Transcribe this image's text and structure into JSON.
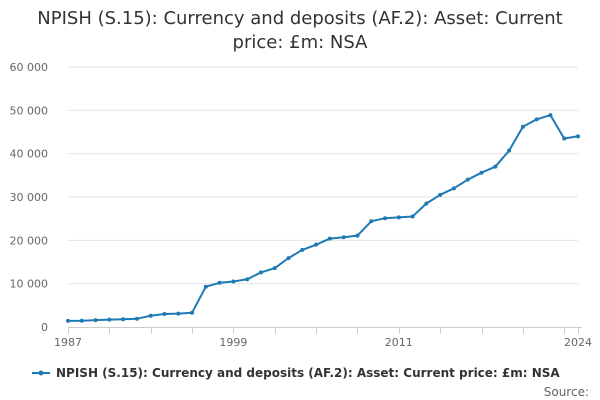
{
  "chart_data": {
    "type": "line",
    "title_line1": "NPISH (S.15): Currency and deposits (AF.2): Asset: Current",
    "title_line2": "price: £m: NSA",
    "xlabel": "",
    "ylabel": "",
    "xlim": [
      1987,
      2024
    ],
    "ylim": [
      0,
      60000
    ],
    "x_ticks": [
      "1987",
      "1999",
      "2011",
      "2024"
    ],
    "y_ticks": [
      "0",
      "10 000",
      "20 000",
      "30 000",
      "40 000",
      "50 000",
      "60 000"
    ],
    "grid": "horizontal",
    "legend_position": "bottom",
    "series": [
      {
        "name": "NPISH (S.15): Currency and deposits (AF.2): Asset: Current price: £m: NSA",
        "color": "#1f7ab4",
        "x": [
          1987,
          1988,
          1989,
          1990,
          1991,
          1992,
          1993,
          1994,
          1995,
          1996,
          1997,
          1998,
          1999,
          2000,
          2001,
          2002,
          2003,
          2004,
          2005,
          2006,
          2007,
          2008,
          2009,
          2010,
          2011,
          2012,
          2013,
          2014,
          2015,
          2016,
          2017,
          2018,
          2019,
          2020,
          2021,
          2022,
          2023,
          2024
        ],
        "values": [
          1400,
          1450,
          1600,
          1700,
          1800,
          1900,
          2600,
          3000,
          3100,
          3300,
          9300,
          10200,
          10500,
          11000,
          12600,
          13600,
          15900,
          17800,
          19000,
          20400,
          20700,
          21100,
          24400,
          25100,
          25300,
          25500,
          28500,
          30500,
          32000,
          34000,
          35600,
          37000,
          40700,
          46200,
          47900,
          48900,
          43500,
          44000
        ]
      }
    ]
  },
  "source_label": "Source:"
}
